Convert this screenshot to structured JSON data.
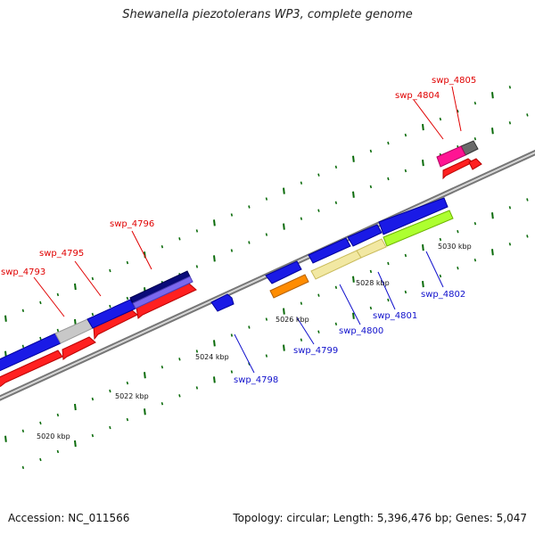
{
  "title": "Shewanella piezotolerans WP3, complete genome",
  "footer": {
    "accession": "Accession: NC_011566",
    "summary": "Topology: circular; Length: 5,396,476 bp; Genes: 5,047"
  },
  "colors": {
    "backbone": "#7a7a7a",
    "tick": "#0b6b0b",
    "forward_label": "#e00000",
    "reverse_label": "#1111cc"
  },
  "kbp_labels": [
    "5020 kbp",
    "5022 kbp",
    "5024 kbp",
    "5026 kbp",
    "5028 kbp",
    "5030 kbp"
  ],
  "gene_labels": {
    "forward": [
      "swp_4793",
      "swp_4795",
      "swp_4796",
      "swp_4804",
      "swp_4805"
    ],
    "reverse": [
      "swp_4798",
      "swp_4799",
      "swp_4800",
      "swp_4801",
      "swp_4802"
    ]
  }
}
